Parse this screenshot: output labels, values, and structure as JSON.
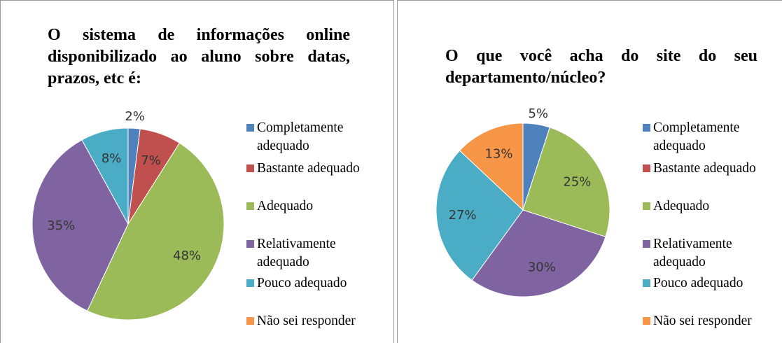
{
  "chart_data": [
    {
      "type": "pie",
      "title": "O sistema de informações online disponibilizado ao aluno sobre datas, prazos, etc é:",
      "categories": [
        "Completamente adequado",
        "Bastante adequado",
        "Adequado",
        "Relativamente adequado",
        "Pouco adequado",
        "Não sei responder"
      ],
      "values": [
        2,
        7,
        48,
        35,
        8,
        0
      ],
      "value_labels": [
        "2%",
        "7%",
        "48%",
        "35%",
        "8%",
        null
      ],
      "colors": [
        "#4f81bd",
        "#c0504d",
        "#9bbb59",
        "#8064a2",
        "#4bacc6",
        "#f79646"
      ],
      "legend": "right"
    },
    {
      "type": "pie",
      "title": "O que você acha do site do seu departamento/núcleo?",
      "categories": [
        "Completamente adequado",
        "Bastante adequado",
        "Adequado",
        "Relativamente adequado",
        "Pouco adequado",
        "Não sei responder"
      ],
      "values": [
        5,
        0,
        25,
        30,
        27,
        13
      ],
      "value_labels": [
        "5%",
        null,
        "25%",
        "30%",
        "27%",
        "13%"
      ],
      "colors": [
        "#4f81bd",
        "#c0504d",
        "#9bbb59",
        "#8064a2",
        "#4bacc6",
        "#f79646"
      ],
      "legend": "right"
    }
  ]
}
